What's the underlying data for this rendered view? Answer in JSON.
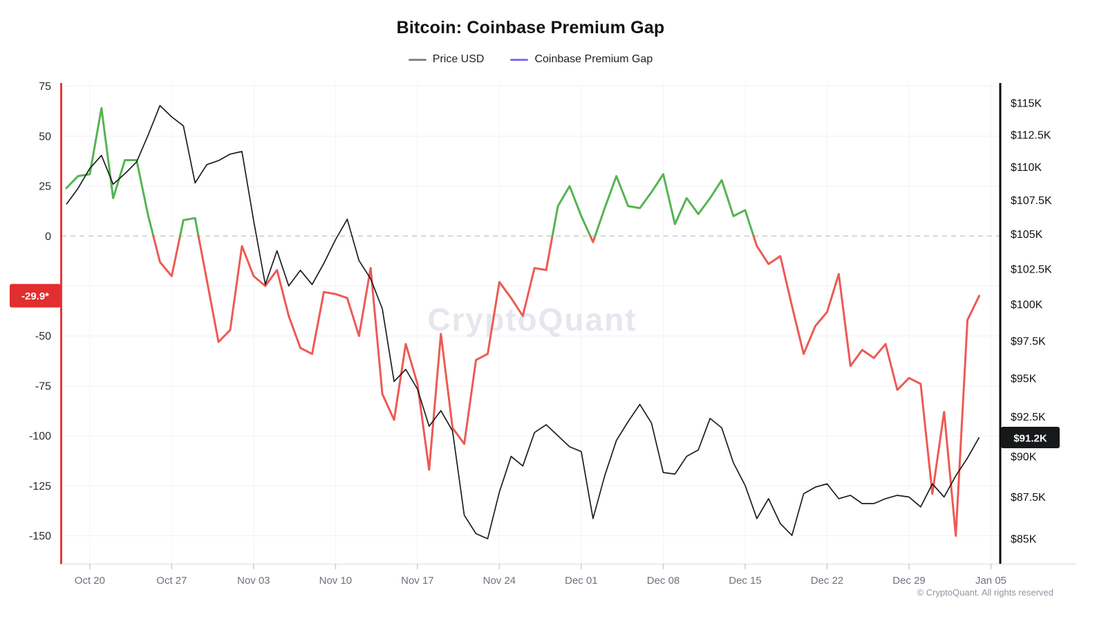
{
  "title": "Bitcoin: Coinbase Premium Gap",
  "legend": [
    {
      "label": "Price USD",
      "color": "#85858a"
    },
    {
      "label": "Coinbase Premium Gap",
      "color": "#7b72ee"
    }
  ],
  "watermark": "CryptoQuant",
  "footer": "© CryptoQuant. All rights reserved",
  "left_axis": {
    "tick_labels": [
      "75",
      "50",
      "25",
      "0",
      "-50",
      "-75",
      "-100",
      "-125",
      "-150"
    ],
    "tick_values": [
      75,
      50,
      25,
      0,
      -50,
      -75,
      -100,
      -125,
      -150
    ],
    "gridline_values": [
      75,
      50,
      25,
      -25,
      -50,
      -75,
      -100,
      -125,
      -150
    ],
    "zero_line_value": 0,
    "badge": {
      "label": "-29.9*",
      "value": -29.9,
      "color": "#e12e2e"
    },
    "spine_color": "#e13a3a"
  },
  "right_axis": {
    "tick_labels": [
      "$115K",
      "$112.5K",
      "$110K",
      "$107.5K",
      "$105K",
      "$102.5K",
      "$100K",
      "$97.5K",
      "$95K",
      "$92.5K",
      "$90K",
      "$87.5K",
      "$85K"
    ],
    "tick_values_k": [
      115,
      112.5,
      110,
      107.5,
      105,
      102.5,
      100,
      97.5,
      95,
      92.5,
      90,
      87.5,
      85
    ],
    "scale": "log",
    "badge": {
      "label": "$91.2K",
      "value_k": 91.2,
      "color": "#17181a"
    },
    "spine_color": "#0c0c0e"
  },
  "x_axis": {
    "tick_labels": [
      "Oct 20",
      "Oct 27",
      "Nov 03",
      "Nov 10",
      "Nov 17",
      "Nov 24",
      "Dec 01",
      "Dec 08",
      "Dec 15",
      "Dec 22",
      "Dec 29",
      "Jan 05"
    ],
    "tick_day_indices": [
      2,
      9,
      16,
      23,
      30,
      37,
      44,
      51,
      58,
      65,
      72,
      79
    ]
  },
  "chart_data": {
    "type": "line",
    "title": "Bitcoin: Coinbase Premium Gap",
    "frequency": "daily",
    "start_date": "Oct 18",
    "end_date": "Jan 04",
    "left_ylim": [
      -150,
      75
    ],
    "right_ylim_k": [
      85,
      115
    ],
    "grid": "on",
    "legend_position": "top",
    "series": [
      {
        "name": "Price USD",
        "axis": "right",
        "unit": "thousand USD",
        "color": "#1c1d21",
        "last_value_label": "$91.2K",
        "values": [
          107.2,
          108.4,
          109.9,
          110.9,
          108.7,
          109.5,
          110.4,
          112.5,
          114.8,
          113.9,
          113.2,
          108.8,
          110.2,
          110.5,
          111.0,
          111.2,
          106.0,
          101.4,
          103.8,
          101.3,
          102.4,
          101.4,
          102.9,
          104.6,
          106.1,
          103.1,
          101.8,
          99.7,
          94.8,
          95.6,
          94.3,
          91.9,
          92.9,
          91.6,
          86.4,
          85.3,
          85.0,
          87.8,
          90.0,
          89.4,
          91.5,
          92.0,
          91.3,
          90.6,
          90.3,
          86.2,
          88.8,
          91.0,
          92.2,
          93.3,
          92.1,
          89.0,
          88.9,
          90.0,
          90.4,
          92.4,
          91.8,
          89.6,
          88.2,
          86.2,
          87.4,
          85.9,
          85.2,
          87.7,
          88.1,
          88.3,
          87.4,
          87.6,
          87.1,
          87.1,
          87.4,
          87.6,
          87.5,
          86.9,
          88.3,
          87.5,
          88.8,
          89.9,
          91.2
        ]
      },
      {
        "name": "Coinbase Premium Gap",
        "axis": "left",
        "color_positive": "#55b451",
        "color_negative": "#ed5a54",
        "last_value_label": "-29.9*",
        "values": [
          24,
          30,
          31,
          64,
          19,
          38,
          38,
          10,
          -13,
          -20,
          8,
          9,
          -22,
          -53,
          -47,
          -5,
          -20,
          -25,
          -17,
          -40,
          -56,
          -59,
          -28,
          -29,
          -31,
          -50,
          -16,
          -79,
          -92,
          -54,
          -74,
          -117,
          -49,
          -96,
          -104,
          -62,
          -59,
          -23,
          -31,
          -40,
          -16,
          -17,
          15,
          25,
          10,
          -3,
          14,
          30,
          15,
          14,
          22,
          31,
          6,
          19,
          11,
          19,
          28,
          10,
          13,
          -5,
          -14,
          -10,
          -35,
          -59,
          -45,
          -38,
          -19,
          -65,
          -57,
          -61,
          -54,
          -77,
          -71,
          -74,
          -129,
          -88,
          -150,
          -42,
          -29.9
        ]
      }
    ]
  }
}
